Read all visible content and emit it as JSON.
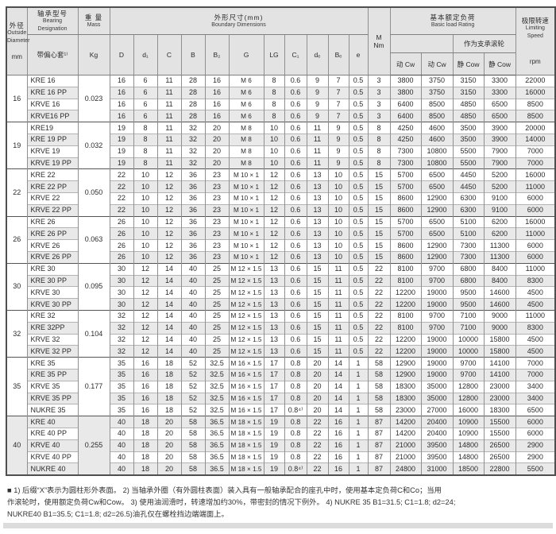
{
  "table": {
    "header": {
      "od": {
        "cn": "外径",
        "en1": "Outside",
        "en2": "Diameter",
        "unit": "mm"
      },
      "designation": {
        "cn": "轴承型号",
        "en": "Bearing Designation",
        "sub": "带偏心套¹⁾"
      },
      "mass": {
        "cn": "重 量",
        "en": "Mass",
        "unit": "Kg"
      },
      "boundary": {
        "cn": "外形尺寸(mm)",
        "en": "Boundary Dimensions",
        "cols": [
          "D",
          "d₁",
          "C",
          "B",
          "B₂",
          "G",
          "LG",
          "C₁",
          "dₑ",
          "Bₑ",
          "e"
        ]
      },
      "torque": {
        "line1": "M",
        "line2": "Nm"
      },
      "load": {
        "cn": "基本额定负荷",
        "en": "Basic load Rating",
        "sub": "作为支承滚轮",
        "cols": [
          "动 Cw",
          "动 Cw",
          "静 Cow",
          "静 Cow"
        ]
      },
      "speed": {
        "cn": "极限转速",
        "en1": "Limiting",
        "en2": "Speed",
        "unit": "rpm"
      }
    },
    "groups": [
      {
        "od": "16",
        "mass": "0.023",
        "rows": [
          [
            "KRE 16",
            "16",
            "6",
            "11",
            "28",
            "16",
            "M 6",
            "8",
            "0.6",
            "9",
            "7",
            "0.5",
            "3",
            "3800",
            "3750",
            "3150",
            "3300",
            "22000"
          ],
          [
            "KRE 16 PP",
            "16",
            "6",
            "11",
            "28",
            "16",
            "M 6",
            "8",
            "0.6",
            "9",
            "7",
            "0.5",
            "3",
            "3800",
            "3750",
            "3150",
            "3300",
            "16000"
          ],
          [
            "KRVE 16",
            "16",
            "6",
            "11",
            "28",
            "16",
            "M 6",
            "8",
            "0.6",
            "9",
            "7",
            "0.5",
            "3",
            "6400",
            "8500",
            "4850",
            "6500",
            "8500"
          ],
          [
            "KRVE16 PP",
            "16",
            "6",
            "11",
            "28",
            "16",
            "M 6",
            "8",
            "0.6",
            "9",
            "7",
            "0.5",
            "3",
            "6400",
            "8500",
            "4850",
            "6500",
            "8500"
          ]
        ]
      },
      {
        "od": "19",
        "mass": "0.032",
        "rows": [
          [
            "KRE19",
            "19",
            "8",
            "11",
            "32",
            "20",
            "M 8",
            "10",
            "0.6",
            "11",
            "9",
            "0.5",
            "8",
            "4250",
            "4600",
            "3500",
            "3900",
            "20000"
          ],
          [
            "KRE 19 PP",
            "19",
            "8",
            "11",
            "32",
            "20",
            "M 8",
            "10",
            "0.6",
            "11",
            "9",
            "0.5",
            "8",
            "4250",
            "4600",
            "3500",
            "3900",
            "14000"
          ],
          [
            "KRVE 19",
            "19",
            "8",
            "11",
            "32",
            "20",
            "M 8",
            "10",
            "0.6",
            "11",
            "9",
            "0.5",
            "8",
            "7300",
            "10800",
            "5500",
            "7900",
            "7000"
          ],
          [
            "KRVE 19 PP",
            "19",
            "8",
            "11",
            "32",
            "20",
            "M 8",
            "10",
            "0.6",
            "11",
            "9",
            "0.5",
            "8",
            "7300",
            "10800",
            "5500",
            "7900",
            "7000"
          ]
        ]
      },
      {
        "od": "22",
        "mass": "0.050",
        "rows": [
          [
            "KRE 22",
            "22",
            "10",
            "12",
            "36",
            "23",
            "M 10 × 1",
            "12",
            "0.6",
            "13",
            "10",
            "0.5",
            "15",
            "5700",
            "6500",
            "4450",
            "5200",
            "16000"
          ],
          [
            "KRE 22 PP",
            "22",
            "10",
            "12",
            "36",
            "23",
            "M 10 × 1",
            "12",
            "0.6",
            "13",
            "10",
            "0.5",
            "15",
            "5700",
            "6500",
            "4450",
            "5200",
            "11000"
          ],
          [
            "KRVE 22",
            "22",
            "10",
            "12",
            "36",
            "23",
            "M 10 × 1",
            "12",
            "0.6",
            "13",
            "10",
            "0.5",
            "15",
            "8600",
            "12900",
            "6300",
            "9100",
            "6000"
          ],
          [
            "KRVE 22 PP",
            "22",
            "10",
            "12",
            "36",
            "23",
            "M 10 × 1",
            "12",
            "0.6",
            "13",
            "10",
            "0.5",
            "15",
            "8600",
            "12900",
            "6300",
            "9100",
            "6000"
          ]
        ]
      },
      {
        "od": "26",
        "mass": "0.063",
        "rows": [
          [
            "KRE 26",
            "26",
            "10",
            "12",
            "36",
            "23",
            "M 10 × 1",
            "12",
            "0.6",
            "13",
            "10",
            "0.5",
            "15",
            "5700",
            "6500",
            "5100",
            "6200",
            "16000"
          ],
          [
            "KRE 26 PP",
            "26",
            "10",
            "12",
            "36",
            "23",
            "M 10 × 1",
            "12",
            "0.6",
            "13",
            "10",
            "0.5",
            "15",
            "5700",
            "6500",
            "5100",
            "6200",
            "11000"
          ],
          [
            "KRVE 26",
            "26",
            "10",
            "12",
            "36",
            "23",
            "M 10 × 1",
            "12",
            "0.6",
            "13",
            "10",
            "0.5",
            "15",
            "8600",
            "12900",
            "7300",
            "11300",
            "6000"
          ],
          [
            "KRVE 26 PP",
            "26",
            "10",
            "12",
            "36",
            "23",
            "M 10 × 1",
            "12",
            "0.6",
            "13",
            "10",
            "0.5",
            "15",
            "8600",
            "12900",
            "7300",
            "11300",
            "6000"
          ]
        ]
      },
      {
        "od": "30",
        "mass": "0.095",
        "rows": [
          [
            "KRE 30",
            "30",
            "12",
            "14",
            "40",
            "25",
            "M 12 × 1.5",
            "13",
            "0.6",
            "15",
            "11",
            "0.5",
            "22",
            "8100",
            "9700",
            "6800",
            "8400",
            "11000"
          ],
          [
            "KRE 30 PP",
            "30",
            "12",
            "14",
            "40",
            "25",
            "M 12 × 1.5",
            "13",
            "0.6",
            "15",
            "11",
            "0.5",
            "22",
            "8100",
            "9700",
            "6800",
            "8400",
            "8300"
          ],
          [
            "KRVE 30",
            "30",
            "12",
            "14",
            "40",
            "25",
            "M 12 × 1.5",
            "13",
            "0.6",
            "15",
            "11",
            "0.5",
            "22",
            "12200",
            "19000",
            "9500",
            "14600",
            "4500"
          ],
          [
            "KRVE 30 PP",
            "30",
            "12",
            "14",
            "40",
            "25",
            "M 12 × 1.5",
            "13",
            "0.6",
            "15",
            "11",
            "0.5",
            "22",
            "12200",
            "19000",
            "9500",
            "14600",
            "4500"
          ]
        ]
      },
      {
        "od": "32",
        "mass": "0.104",
        "rows": [
          [
            "KRE 32",
            "32",
            "12",
            "14",
            "40",
            "25",
            "M 12 × 1.5",
            "13",
            "0.6",
            "15",
            "11",
            "0.5",
            "22",
            "8100",
            "9700",
            "7100",
            "9000",
            "11000"
          ],
          [
            "KRE 32PP",
            "32",
            "12",
            "14",
            "40",
            "25",
            "M 12 × 1.5",
            "13",
            "0.6",
            "15",
            "11",
            "0.5",
            "22",
            "8100",
            "9700",
            "7100",
            "9000",
            "8300"
          ],
          [
            "KRVE 32",
            "32",
            "12",
            "14",
            "40",
            "25",
            "M 12 × 1.5",
            "13",
            "0.6",
            "15",
            "11",
            "0.5",
            "22",
            "12200",
            "19000",
            "10000",
            "15800",
            "4500"
          ],
          [
            "KRVE 32 PP",
            "32",
            "12",
            "14",
            "40",
            "25",
            "M 12 × 1.5",
            "13",
            "0.6",
            "15",
            "11",
            "0.5",
            "22",
            "12200",
            "19000",
            "10000",
            "15800",
            "4500"
          ]
        ]
      },
      {
        "od": "35",
        "mass": "0.177",
        "rows": [
          [
            "KRE 35",
            "35",
            "16",
            "18",
            "52",
            "32.5",
            "M 16 × 1.5",
            "17",
            "0.8",
            "20",
            "14",
            "1",
            "58",
            "12900",
            "19000",
            "9700",
            "14100",
            "7000"
          ],
          [
            "KRE 35 PP",
            "35",
            "16",
            "18",
            "52",
            "32.5",
            "M 16 × 1.5",
            "17",
            "0.8",
            "20",
            "14",
            "1",
            "58",
            "12900",
            "19000",
            "9700",
            "14100",
            "7000"
          ],
          [
            "KRVE 35",
            "35",
            "16",
            "18",
            "52",
            "32.5",
            "M 16 × 1.5",
            "17",
            "0.8",
            "20",
            "14",
            "1",
            "58",
            "18300",
            "35000",
            "12800",
            "23000",
            "3400"
          ],
          [
            "KRVE 35 PP",
            "35",
            "16",
            "18",
            "52",
            "32.5",
            "M 16 × 1.5",
            "17",
            "0.8",
            "20",
            "14",
            "1",
            "58",
            "18300",
            "35000",
            "12800",
            "23000",
            "3400"
          ],
          [
            "NUKRE 35",
            "35",
            "16",
            "18",
            "52",
            "32.5",
            "M 16 × 1.5",
            "17",
            "0.8⁴⁾",
            "20",
            "14",
            "1",
            "58",
            "23000",
            "27000",
            "16000",
            "18300",
            "6500"
          ]
        ]
      },
      {
        "od": "40",
        "mass": "0.255",
        "rows": [
          [
            "KRE 40",
            "40",
            "18",
            "20",
            "58",
            "36.5",
            "M 18 × 1.5",
            "19",
            "0.8",
            "22",
            "16",
            "1",
            "87",
            "14200",
            "20400",
            "10900",
            "15500",
            "6000"
          ],
          [
            "KRE 40 PP",
            "40",
            "18",
            "20",
            "58",
            "36.5",
            "M 18 × 1.5",
            "19",
            "0.8",
            "22",
            "16",
            "1",
            "87",
            "14200",
            "20400",
            "10900",
            "15500",
            "6000"
          ],
          [
            "KRVE 40",
            "40",
            "18",
            "20",
            "58",
            "36.5",
            "M 18 × 1.5",
            "19",
            "0.8",
            "22",
            "16",
            "1",
            "87",
            "21000",
            "39500",
            "14800",
            "26500",
            "2900"
          ],
          [
            "KRVE 40 PP",
            "40",
            "18",
            "20",
            "58",
            "36.5",
            "M 18 × 1.5",
            "19",
            "0.8",
            "22",
            "16",
            "1",
            "87",
            "21000",
            "39500",
            "14800",
            "26500",
            "2900"
          ],
          [
            "NUKRE 40",
            "40",
            "18",
            "20",
            "58",
            "36.5",
            "M 18 × 1.5",
            "19",
            "0.8⁴⁾",
            "22",
            "16",
            "1",
            "87",
            "24800",
            "31000",
            "18500",
            "22800",
            "5500"
          ]
        ]
      }
    ]
  },
  "footnotes": {
    "lines": [
      "■ 1) 后缀“X”表示为圆柱形外表面。  2) 当轴承外圈（有外圆柱表面）装入具有一般轴承配合的座孔中时，使用基本定负荷C和Co；当用",
      "作滚轮时，使用额定负荷Cw和Cow。  3) 使用油润滑时，转速增加约30%，带密封的情况下例外。  4) NUKRE 35 B1=31.5; C1=1.8; d2=24;",
      "NUKRE40 B1=35.5; C1=1.8; d2=26.5)油孔仅在螺栓挡边端端面上。"
    ]
  }
}
